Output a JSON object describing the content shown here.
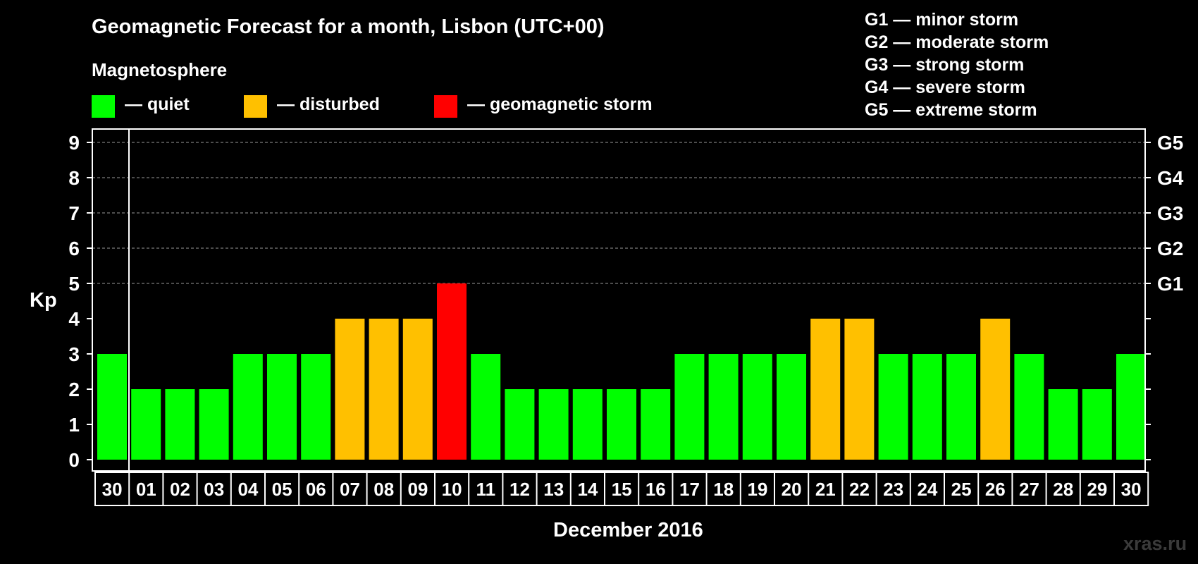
{
  "header": {
    "title": "Geomagnetic Forecast for a month, Lisbon (UTC+00)",
    "magnetosphere": "Magnetosphere"
  },
  "legend": {
    "quiet": {
      "label": "— quiet",
      "color": "#00ff00"
    },
    "disturbed": {
      "label": "— disturbed",
      "color": "#ffc000"
    },
    "storm": {
      "label": "— geomagnetic storm",
      "color": "#ff0000"
    }
  },
  "storm_scale": [
    "G1 — minor storm",
    "G2 — moderate storm",
    "G3 — strong storm",
    "G4 — severe storm",
    "G5 — extreme storm"
  ],
  "watermark": "xras.ru",
  "chart_data": {
    "type": "bar",
    "xlabel": "December 2016",
    "ylabel": "Kp",
    "ylim": [
      0,
      9
    ],
    "yticks": [
      "0",
      "1",
      "2",
      "3",
      "4",
      "5",
      "6",
      "7",
      "8",
      "9"
    ],
    "right_axis_labels": [
      {
        "value": 5,
        "label": "G1"
      },
      {
        "value": 6,
        "label": "G2"
      },
      {
        "value": 7,
        "label": "G3"
      },
      {
        "value": 8,
        "label": "G4"
      },
      {
        "value": 9,
        "label": "G5"
      }
    ],
    "grid": "dashed horizontal lines at Kp 5–9",
    "categories": [
      "30",
      "01",
      "02",
      "03",
      "04",
      "05",
      "06",
      "07",
      "08",
      "09",
      "10",
      "11",
      "12",
      "13",
      "14",
      "15",
      "16",
      "17",
      "18",
      "19",
      "20",
      "21",
      "22",
      "23",
      "24",
      "25",
      "26",
      "27",
      "28",
      "29",
      "30"
    ],
    "values": [
      3,
      2,
      2,
      2,
      3,
      3,
      3,
      4,
      4,
      4,
      5,
      3,
      2,
      2,
      2,
      2,
      2,
      3,
      3,
      3,
      3,
      4,
      4,
      3,
      3,
      3,
      4,
      3,
      2,
      2,
      3
    ],
    "color_rule": {
      "quiet": "Kp < 4",
      "disturbed": "Kp = 4",
      "storm": "Kp >= 5"
    }
  }
}
